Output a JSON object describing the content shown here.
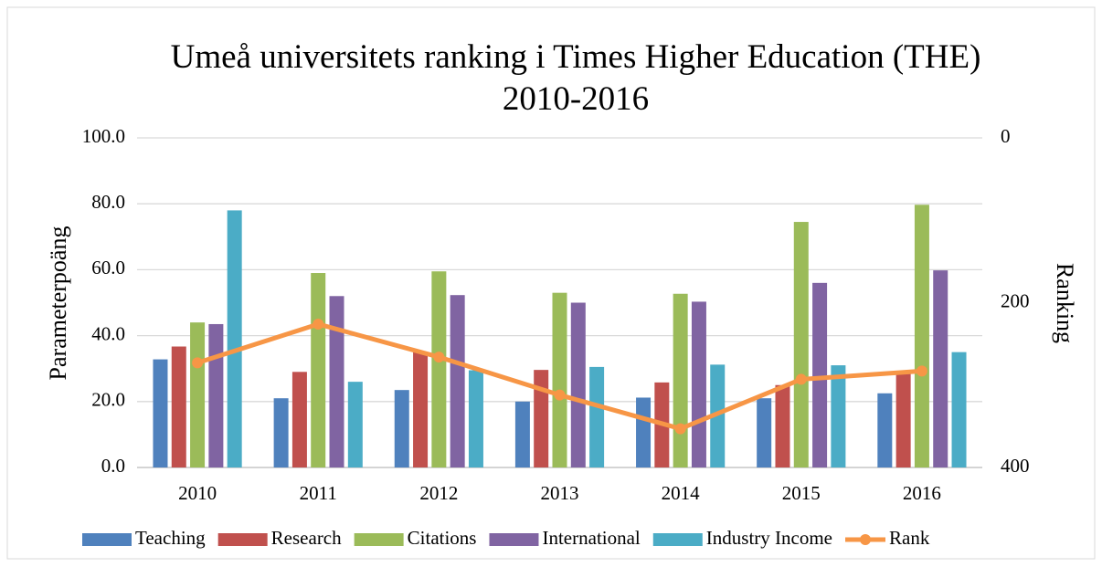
{
  "chart_data": {
    "type": "bar",
    "title": "Umeå universitets ranking i Times Higher Education (THE) 2010-2016",
    "y_label": "Parameterpoäng",
    "y2_label": "Ranking",
    "categories": [
      "2010",
      "2011",
      "2012",
      "2013",
      "2014",
      "2015",
      "2016"
    ],
    "series": [
      {
        "name": "Teaching",
        "color": "#4f81bd",
        "type": "bar",
        "values": [
          32.8,
          21,
          23.5,
          20,
          21.2,
          21,
          22.5
        ]
      },
      {
        "name": "Research",
        "color": "#c0504d",
        "type": "bar",
        "values": [
          36.7,
          29,
          35,
          29.6,
          25.8,
          25,
          29
        ]
      },
      {
        "name": "Citations",
        "color": "#9bbb59",
        "type": "bar",
        "values": [
          44,
          59,
          59.5,
          53,
          52.7,
          74.5,
          79.7
        ]
      },
      {
        "name": "International",
        "color": "#8064a2",
        "type": "bar",
        "values": [
          43.5,
          52,
          52.3,
          50,
          50.3,
          56,
          59.8
        ]
      },
      {
        "name": "Industry Income",
        "color": "#4bacc6",
        "type": "bar",
        "values": [
          78,
          26,
          29.5,
          30.5,
          31.2,
          31,
          35
        ]
      },
      {
        "name": "Rank",
        "color": "#f79646",
        "type": "line",
        "axis": "y2",
        "values": [
          273,
          226,
          266,
          312,
          353,
          293,
          283
        ]
      }
    ],
    "ylim": [
      0,
      100
    ],
    "yticks": [
      {
        "value": 0,
        "label": "0.0"
      },
      {
        "value": 20,
        "label": "20.0"
      },
      {
        "value": 40,
        "label": "40.0"
      },
      {
        "value": 60,
        "label": "60.0"
      },
      {
        "value": 80,
        "label": "80.0"
      },
      {
        "value": 100,
        "label": "100.0"
      }
    ],
    "y2lim": [
      0,
      400
    ],
    "y2ticks": [
      0,
      200,
      400
    ],
    "y2_reversed": true,
    "grid": true,
    "legend": "bottom"
  }
}
